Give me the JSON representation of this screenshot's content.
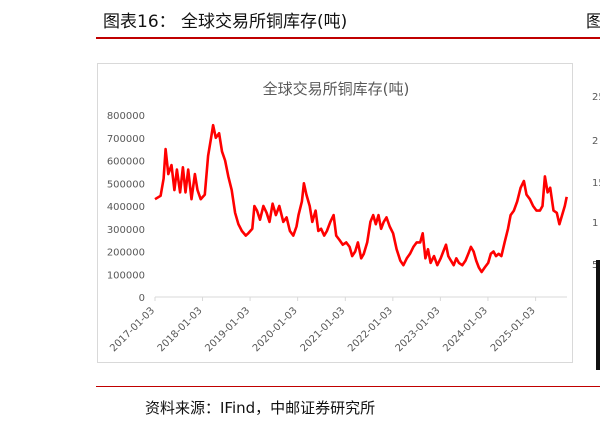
{
  "figure": {
    "title": "图表16： 全球交易所铜库存(吨)",
    "next_title_fragment": "图",
    "source": "资料来源：IFind，中邮证券研究所",
    "right_axis_fragment": [
      "25",
      "2",
      "15",
      "1",
      "5"
    ]
  },
  "colors": {
    "accent": "#c00000",
    "series": "#ff0000",
    "axis_text": "#595959",
    "grid": "#d9d9d9"
  },
  "chart_data": {
    "type": "line",
    "title": "全球交易所铜库存(吨)",
    "xlabel": "",
    "ylabel": "",
    "ylim": [
      0,
      800000
    ],
    "yticks": [
      0,
      100000,
      200000,
      300000,
      400000,
      500000,
      600000,
      700000,
      800000
    ],
    "ytick_labels": [
      "0",
      "100000",
      "200000",
      "300000",
      "400000",
      "500000",
      "600000",
      "700000",
      "800000"
    ],
    "xlim": [
      "2017-01-03",
      "2025-09-01"
    ],
    "xtick_labels": [
      "2017-01-03",
      "2018-01-03",
      "2019-01-03",
      "2020-01-03",
      "2021-01-03",
      "2022-01-03",
      "2023-01-03",
      "2024-01-03",
      "2025-01-03"
    ],
    "grid": false,
    "legend": "none",
    "series": [
      {
        "points": [
          [
            "2017-01-03",
            430000
          ],
          [
            "2017-02-15",
            445000
          ],
          [
            "2017-03-10",
            520000
          ],
          [
            "2017-03-25",
            650000
          ],
          [
            "2017-04-15",
            540000
          ],
          [
            "2017-05-10",
            580000
          ],
          [
            "2017-06-01",
            470000
          ],
          [
            "2017-06-20",
            560000
          ],
          [
            "2017-07-15",
            460000
          ],
          [
            "2017-08-05",
            570000
          ],
          [
            "2017-08-25",
            460000
          ],
          [
            "2017-09-15",
            560000
          ],
          [
            "2017-10-10",
            430000
          ],
          [
            "2017-11-05",
            540000
          ],
          [
            "2017-11-25",
            470000
          ],
          [
            "2017-12-20",
            430000
          ],
          [
            "2018-01-20",
            450000
          ],
          [
            "2018-02-15",
            620000
          ],
          [
            "2018-03-10",
            700000
          ],
          [
            "2018-03-25",
            755000
          ],
          [
            "2018-04-15",
            700000
          ],
          [
            "2018-05-10",
            720000
          ],
          [
            "2018-06-01",
            640000
          ],
          [
            "2018-06-25",
            600000
          ],
          [
            "2018-07-20",
            530000
          ],
          [
            "2018-08-15",
            470000
          ],
          [
            "2018-09-10",
            370000
          ],
          [
            "2018-10-05",
            320000
          ],
          [
            "2018-11-01",
            290000
          ],
          [
            "2018-12-01",
            270000
          ],
          [
            "2018-12-20",
            280000
          ],
          [
            "2019-01-20",
            300000
          ],
          [
            "2019-02-05",
            400000
          ],
          [
            "2019-02-25",
            380000
          ],
          [
            "2019-03-20",
            340000
          ],
          [
            "2019-04-15",
            400000
          ],
          [
            "2019-05-10",
            370000
          ],
          [
            "2019-06-01",
            330000
          ],
          [
            "2019-06-25",
            410000
          ],
          [
            "2019-07-20",
            360000
          ],
          [
            "2019-08-15",
            400000
          ],
          [
            "2019-09-15",
            330000
          ],
          [
            "2019-10-10",
            350000
          ],
          [
            "2019-11-05",
            290000
          ],
          [
            "2019-12-01",
            270000
          ],
          [
            "2019-12-25",
            310000
          ],
          [
            "2020-01-10",
            360000
          ],
          [
            "2020-02-05",
            420000
          ],
          [
            "2020-02-20",
            500000
          ],
          [
            "2020-03-10",
            450000
          ],
          [
            "2020-04-05",
            400000
          ],
          [
            "2020-04-25",
            330000
          ],
          [
            "2020-05-20",
            380000
          ],
          [
            "2020-06-10",
            290000
          ],
          [
            "2020-07-01",
            300000
          ],
          [
            "2020-07-25",
            270000
          ],
          [
            "2020-08-15",
            290000
          ],
          [
            "2020-09-10",
            330000
          ],
          [
            "2020-10-05",
            360000
          ],
          [
            "2020-10-25",
            270000
          ],
          [
            "2020-11-20",
            250000
          ],
          [
            "2020-12-15",
            230000
          ],
          [
            "2021-01-10",
            240000
          ],
          [
            "2021-02-05",
            220000
          ],
          [
            "2021-02-25",
            180000
          ],
          [
            "2021-03-20",
            200000
          ],
          [
            "2021-04-10",
            240000
          ],
          [
            "2021-05-05",
            170000
          ],
          [
            "2021-05-25",
            190000
          ],
          [
            "2021-06-20",
            240000
          ],
          [
            "2021-07-15",
            330000
          ],
          [
            "2021-08-05",
            360000
          ],
          [
            "2021-08-25",
            320000
          ],
          [
            "2021-09-15",
            360000
          ],
          [
            "2021-10-05",
            300000
          ],
          [
            "2021-10-25",
            330000
          ],
          [
            "2021-11-15",
            350000
          ],
          [
            "2021-12-10",
            310000
          ],
          [
            "2022-01-05",
            280000
          ],
          [
            "2022-02-01",
            210000
          ],
          [
            "2022-03-01",
            160000
          ],
          [
            "2022-03-25",
            140000
          ],
          [
            "2022-04-20",
            170000
          ],
          [
            "2022-05-15",
            190000
          ],
          [
            "2022-06-10",
            220000
          ],
          [
            "2022-07-05",
            240000
          ],
          [
            "2022-08-01",
            240000
          ],
          [
            "2022-08-20",
            280000
          ],
          [
            "2022-09-10",
            170000
          ],
          [
            "2022-09-30",
            210000
          ],
          [
            "2022-10-20",
            150000
          ],
          [
            "2022-11-15",
            180000
          ],
          [
            "2022-12-10",
            140000
          ],
          [
            "2023-01-05",
            170000
          ],
          [
            "2023-01-25",
            200000
          ],
          [
            "2023-02-15",
            230000
          ],
          [
            "2023-03-05",
            180000
          ],
          [
            "2023-03-25",
            160000
          ],
          [
            "2023-04-15",
            140000
          ],
          [
            "2023-05-05",
            170000
          ],
          [
            "2023-05-25",
            150000
          ],
          [
            "2023-06-20",
            140000
          ],
          [
            "2023-07-15",
            160000
          ],
          [
            "2023-08-05",
            190000
          ],
          [
            "2023-08-25",
            220000
          ],
          [
            "2023-09-15",
            200000
          ],
          [
            "2023-10-05",
            160000
          ],
          [
            "2023-10-25",
            130000
          ],
          [
            "2023-11-15",
            110000
          ],
          [
            "2023-12-10",
            130000
          ],
          [
            "2024-01-05",
            150000
          ],
          [
            "2024-01-25",
            190000
          ],
          [
            "2024-02-15",
            200000
          ],
          [
            "2024-03-05",
            180000
          ],
          [
            "2024-03-25",
            190000
          ],
          [
            "2024-04-15",
            180000
          ],
          [
            "2024-05-10",
            240000
          ],
          [
            "2024-06-05",
            300000
          ],
          [
            "2024-06-25",
            360000
          ],
          [
            "2024-07-20",
            380000
          ],
          [
            "2024-08-15",
            420000
          ],
          [
            "2024-09-10",
            480000
          ],
          [
            "2024-10-05",
            510000
          ],
          [
            "2024-10-25",
            450000
          ],
          [
            "2024-11-20",
            430000
          ],
          [
            "2024-12-15",
            400000
          ],
          [
            "2025-01-10",
            380000
          ],
          [
            "2025-02-05",
            380000
          ],
          [
            "2025-02-25",
            400000
          ],
          [
            "2025-03-15",
            530000
          ],
          [
            "2025-04-05",
            460000
          ],
          [
            "2025-04-25",
            480000
          ],
          [
            "2025-05-20",
            380000
          ],
          [
            "2025-06-15",
            370000
          ],
          [
            "2025-07-05",
            320000
          ],
          [
            "2025-07-25",
            360000
          ],
          [
            "2025-08-15",
            400000
          ],
          [
            "2025-08-30",
            440000
          ]
        ]
      }
    ]
  }
}
